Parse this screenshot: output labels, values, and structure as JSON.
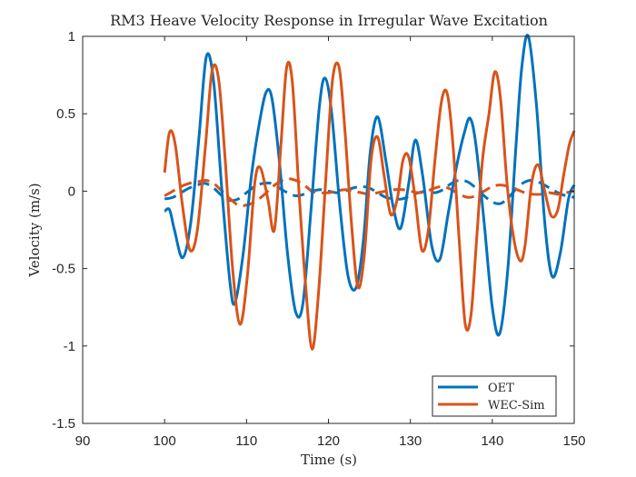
{
  "chart_data": {
    "type": "line",
    "title": "RM3 Heave Velocity Response in Irregular Wave Excitation",
    "xlabel": "Time (s)",
    "ylabel": "Velocity (m/s)",
    "xlim": [
      90,
      150
    ],
    "ylim": [
      -1.5,
      1
    ],
    "xticks": [
      90,
      100,
      110,
      120,
      130,
      140,
      150
    ],
    "yticks": [
      -1.5,
      -1,
      -0.5,
      0,
      0.5,
      1
    ],
    "xtick_labels": [
      "90",
      "100",
      "110",
      "120",
      "130",
      "140",
      "150"
    ],
    "ytick_labels": [
      "-1.5",
      "-1",
      "-0.5",
      "0",
      "0.5",
      "1"
    ],
    "grid": false,
    "legend_position": "bottom-right",
    "legend": [
      "OET",
      "WEC-Sim"
    ],
    "series": [
      {
        "name": "OET",
        "style": "solid",
        "color": "#0072BD",
        "x": [
          100,
          100.6,
          101.2,
          102.2,
          103.2,
          104.2,
          105.1,
          106.0,
          107.0,
          108.0,
          108.6,
          109.6,
          110.6,
          111.6,
          112.4,
          113.1,
          114.0,
          115.0,
          116.0,
          116.9,
          117.9,
          118.9,
          119.6,
          120.4,
          121.4,
          122.4,
          123.4,
          124.3,
          125.1,
          126.0,
          127.0,
          127.9,
          128.8,
          129.8,
          130.6,
          131.5,
          132.6,
          133.6,
          134.6,
          135.6,
          136.6,
          137.3,
          138.0,
          139.0,
          140.0,
          140.9,
          141.9,
          142.9,
          143.6,
          144.4,
          145.4,
          146.4,
          147.3,
          148.3,
          149.3,
          150
        ],
        "y": [
          -0.13,
          -0.12,
          -0.25,
          -0.43,
          -0.2,
          0.35,
          0.87,
          0.7,
          0.0,
          -0.6,
          -0.72,
          -0.4,
          0.1,
          0.45,
          0.64,
          0.6,
          0.2,
          -0.4,
          -0.78,
          -0.72,
          -0.1,
          0.55,
          0.73,
          0.5,
          -0.1,
          -0.55,
          -0.62,
          -0.3,
          0.25,
          0.48,
          0.2,
          -0.1,
          -0.24,
          0.05,
          0.33,
          0.1,
          -0.35,
          -0.44,
          -0.15,
          0.15,
          0.38,
          0.47,
          0.3,
          -0.2,
          -0.75,
          -0.92,
          -0.5,
          0.3,
          0.8,
          1.0,
          0.55,
          -0.2,
          -0.55,
          -0.4,
          -0.05,
          0.04
        ]
      },
      {
        "name": "WEC-Sim",
        "style": "solid",
        "color": "#D95319",
        "x": [
          100,
          100.6,
          101.3,
          102.2,
          103.1,
          104.0,
          105.0,
          105.8,
          106.6,
          107.4,
          108.3,
          109.2,
          110.1,
          111.0,
          111.7,
          112.6,
          113.4,
          114.2,
          114.9,
          115.6,
          116.4,
          117.2,
          118.0,
          118.8,
          119.7,
          120.5,
          121.3,
          122.0,
          122.8,
          123.6,
          124.4,
          125.2,
          126.0,
          126.8,
          127.6,
          128.4,
          129.1,
          129.8,
          130.6,
          131.4,
          132.2,
          133.0,
          133.8,
          134.5,
          135.2,
          136.0,
          136.7,
          137.4,
          138.1,
          138.8,
          139.6,
          140.3,
          141.0,
          141.8,
          142.6,
          143.4,
          144.0,
          144.8,
          145.6,
          146.4,
          147.2,
          148.0,
          148.7,
          149.4,
          150
        ],
        "y": [
          0.12,
          0.38,
          0.3,
          -0.1,
          -0.38,
          -0.25,
          0.3,
          0.78,
          0.72,
          0.2,
          -0.5,
          -0.86,
          -0.55,
          0.05,
          0.15,
          -0.05,
          -0.25,
          0.3,
          0.8,
          0.7,
          0.0,
          -0.6,
          -1.02,
          -0.65,
          0.1,
          0.72,
          0.8,
          0.4,
          -0.2,
          -0.62,
          -0.4,
          0.2,
          0.35,
          0.1,
          -0.15,
          -0.05,
          0.2,
          0.22,
          -0.05,
          -0.38,
          -0.25,
          0.2,
          0.58,
          0.63,
          0.3,
          -0.35,
          -0.86,
          -0.8,
          -0.3,
          0.2,
          0.5,
          0.77,
          0.6,
          0.05,
          -0.3,
          -0.45,
          -0.35,
          0.05,
          0.17,
          0.0,
          -0.16,
          -0.12,
          0.1,
          0.3,
          0.39
        ]
      },
      {
        "name": "",
        "style": "dashed",
        "color": "#0072BD",
        "x": [
          100,
          101,
          102,
          103,
          104,
          105,
          106,
          107,
          108,
          109,
          110,
          111,
          112,
          113,
          114,
          115,
          116,
          117,
          118,
          119,
          120,
          121,
          122,
          123,
          124,
          125,
          126,
          127,
          128,
          129,
          130,
          131,
          132,
          133,
          134,
          135,
          136,
          137,
          138,
          139,
          140,
          141,
          142,
          143,
          144,
          145,
          146,
          147,
          148,
          149,
          150
        ],
        "y": [
          -0.05,
          -0.04,
          -0.01,
          0.02,
          0.04,
          0.05,
          0.02,
          -0.03,
          -0.06,
          -0.05,
          -0.01,
          0.03,
          0.05,
          0.05,
          0.02,
          -0.01,
          -0.03,
          -0.02,
          0.0,
          0.01,
          0.0,
          -0.01,
          0.0,
          0.02,
          0.03,
          0.02,
          -0.01,
          -0.04,
          -0.05,
          -0.05,
          -0.03,
          -0.01,
          0.0,
          -0.01,
          0.01,
          0.05,
          0.07,
          0.06,
          0.02,
          -0.03,
          -0.07,
          -0.08,
          -0.04,
          0.02,
          0.06,
          0.07,
          0.05,
          0.02,
          -0.01,
          -0.03,
          -0.04
        ]
      },
      {
        "name": "",
        "style": "dashed",
        "color": "#D95319",
        "x": [
          100,
          101,
          102,
          103,
          104,
          105,
          106,
          107,
          108,
          109,
          110,
          111,
          112,
          113,
          114,
          115,
          116,
          117,
          118,
          119,
          120,
          121,
          122,
          123,
          124,
          125,
          126,
          127,
          128,
          129,
          130,
          131,
          132,
          133,
          134,
          135,
          136,
          137,
          138,
          139,
          140,
          141,
          142,
          143,
          144,
          145,
          146,
          147,
          148,
          149,
          150
        ],
        "y": [
          -0.03,
          0.0,
          0.03,
          0.05,
          0.06,
          0.07,
          0.05,
          0.0,
          -0.05,
          -0.09,
          -0.09,
          -0.07,
          -0.03,
          0.02,
          0.06,
          0.08,
          0.07,
          0.04,
          0.0,
          -0.01,
          -0.01,
          0.0,
          0.01,
          0.0,
          -0.01,
          -0.02,
          -0.01,
          0.0,
          0.01,
          0.01,
          0.0,
          -0.01,
          0.0,
          0.02,
          0.03,
          0.01,
          -0.02,
          -0.04,
          -0.03,
          0.0,
          0.03,
          0.04,
          0.03,
          0.01,
          -0.01,
          -0.02,
          -0.02,
          -0.01,
          -0.02,
          -0.01,
          0.0
        ]
      }
    ]
  }
}
